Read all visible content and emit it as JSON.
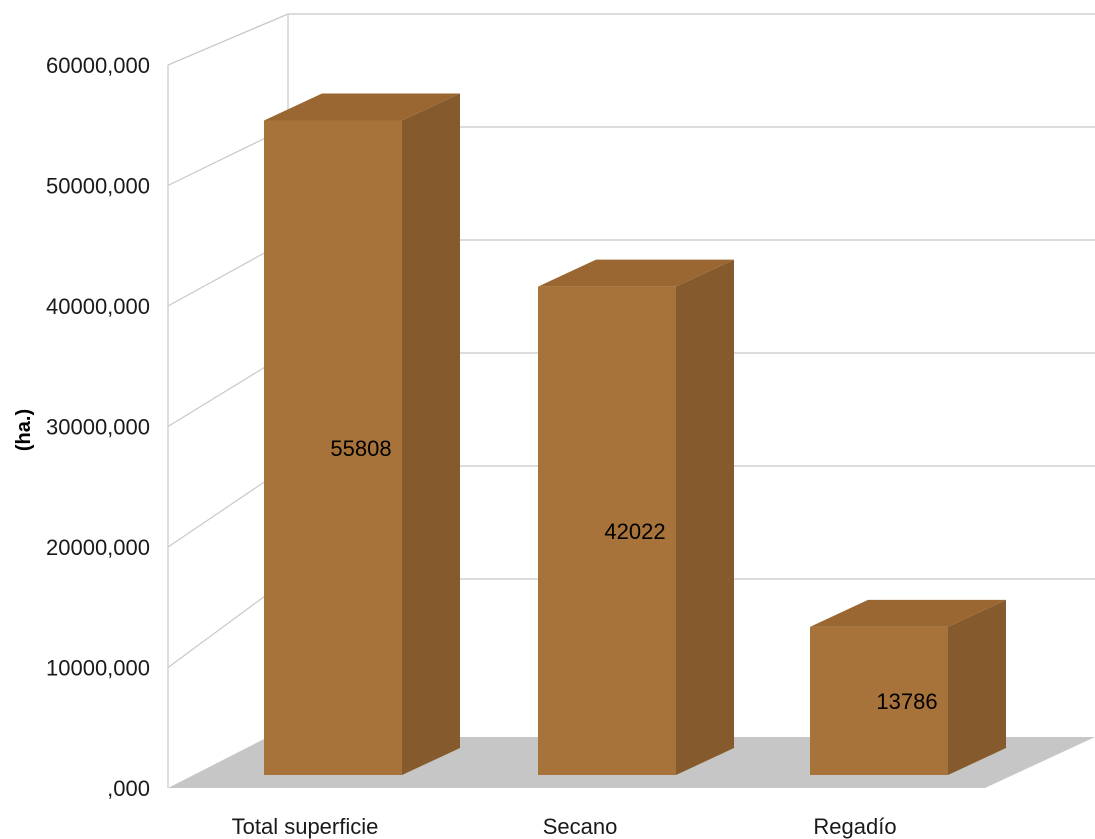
{
  "chart_data": {
    "type": "bar",
    "style": "3d-column",
    "categories": [
      "Total superficie",
      "Secano",
      "Regadío"
    ],
    "values": [
      55808,
      42022,
      13786
    ],
    "data_labels": [
      "55808",
      "42022",
      "13786"
    ],
    "ylabel": "(ha.)",
    "ylim": [
      0,
      60000
    ],
    "y_ticks": [
      0,
      10000,
      20000,
      30000,
      40000,
      50000,
      60000
    ],
    "y_tick_labels": [
      ",000",
      "10000,000",
      "20000,000",
      "30000,000",
      "40000,000",
      "50000,000",
      "60000,000"
    ],
    "grid": true,
    "legend": "none",
    "colors": {
      "bar_front": "#A8733A",
      "bar_side": "#855A2C",
      "bar_top": "#9A6631",
      "floor": "#C6C6C6",
      "grid": "#C8C8C8"
    }
  }
}
